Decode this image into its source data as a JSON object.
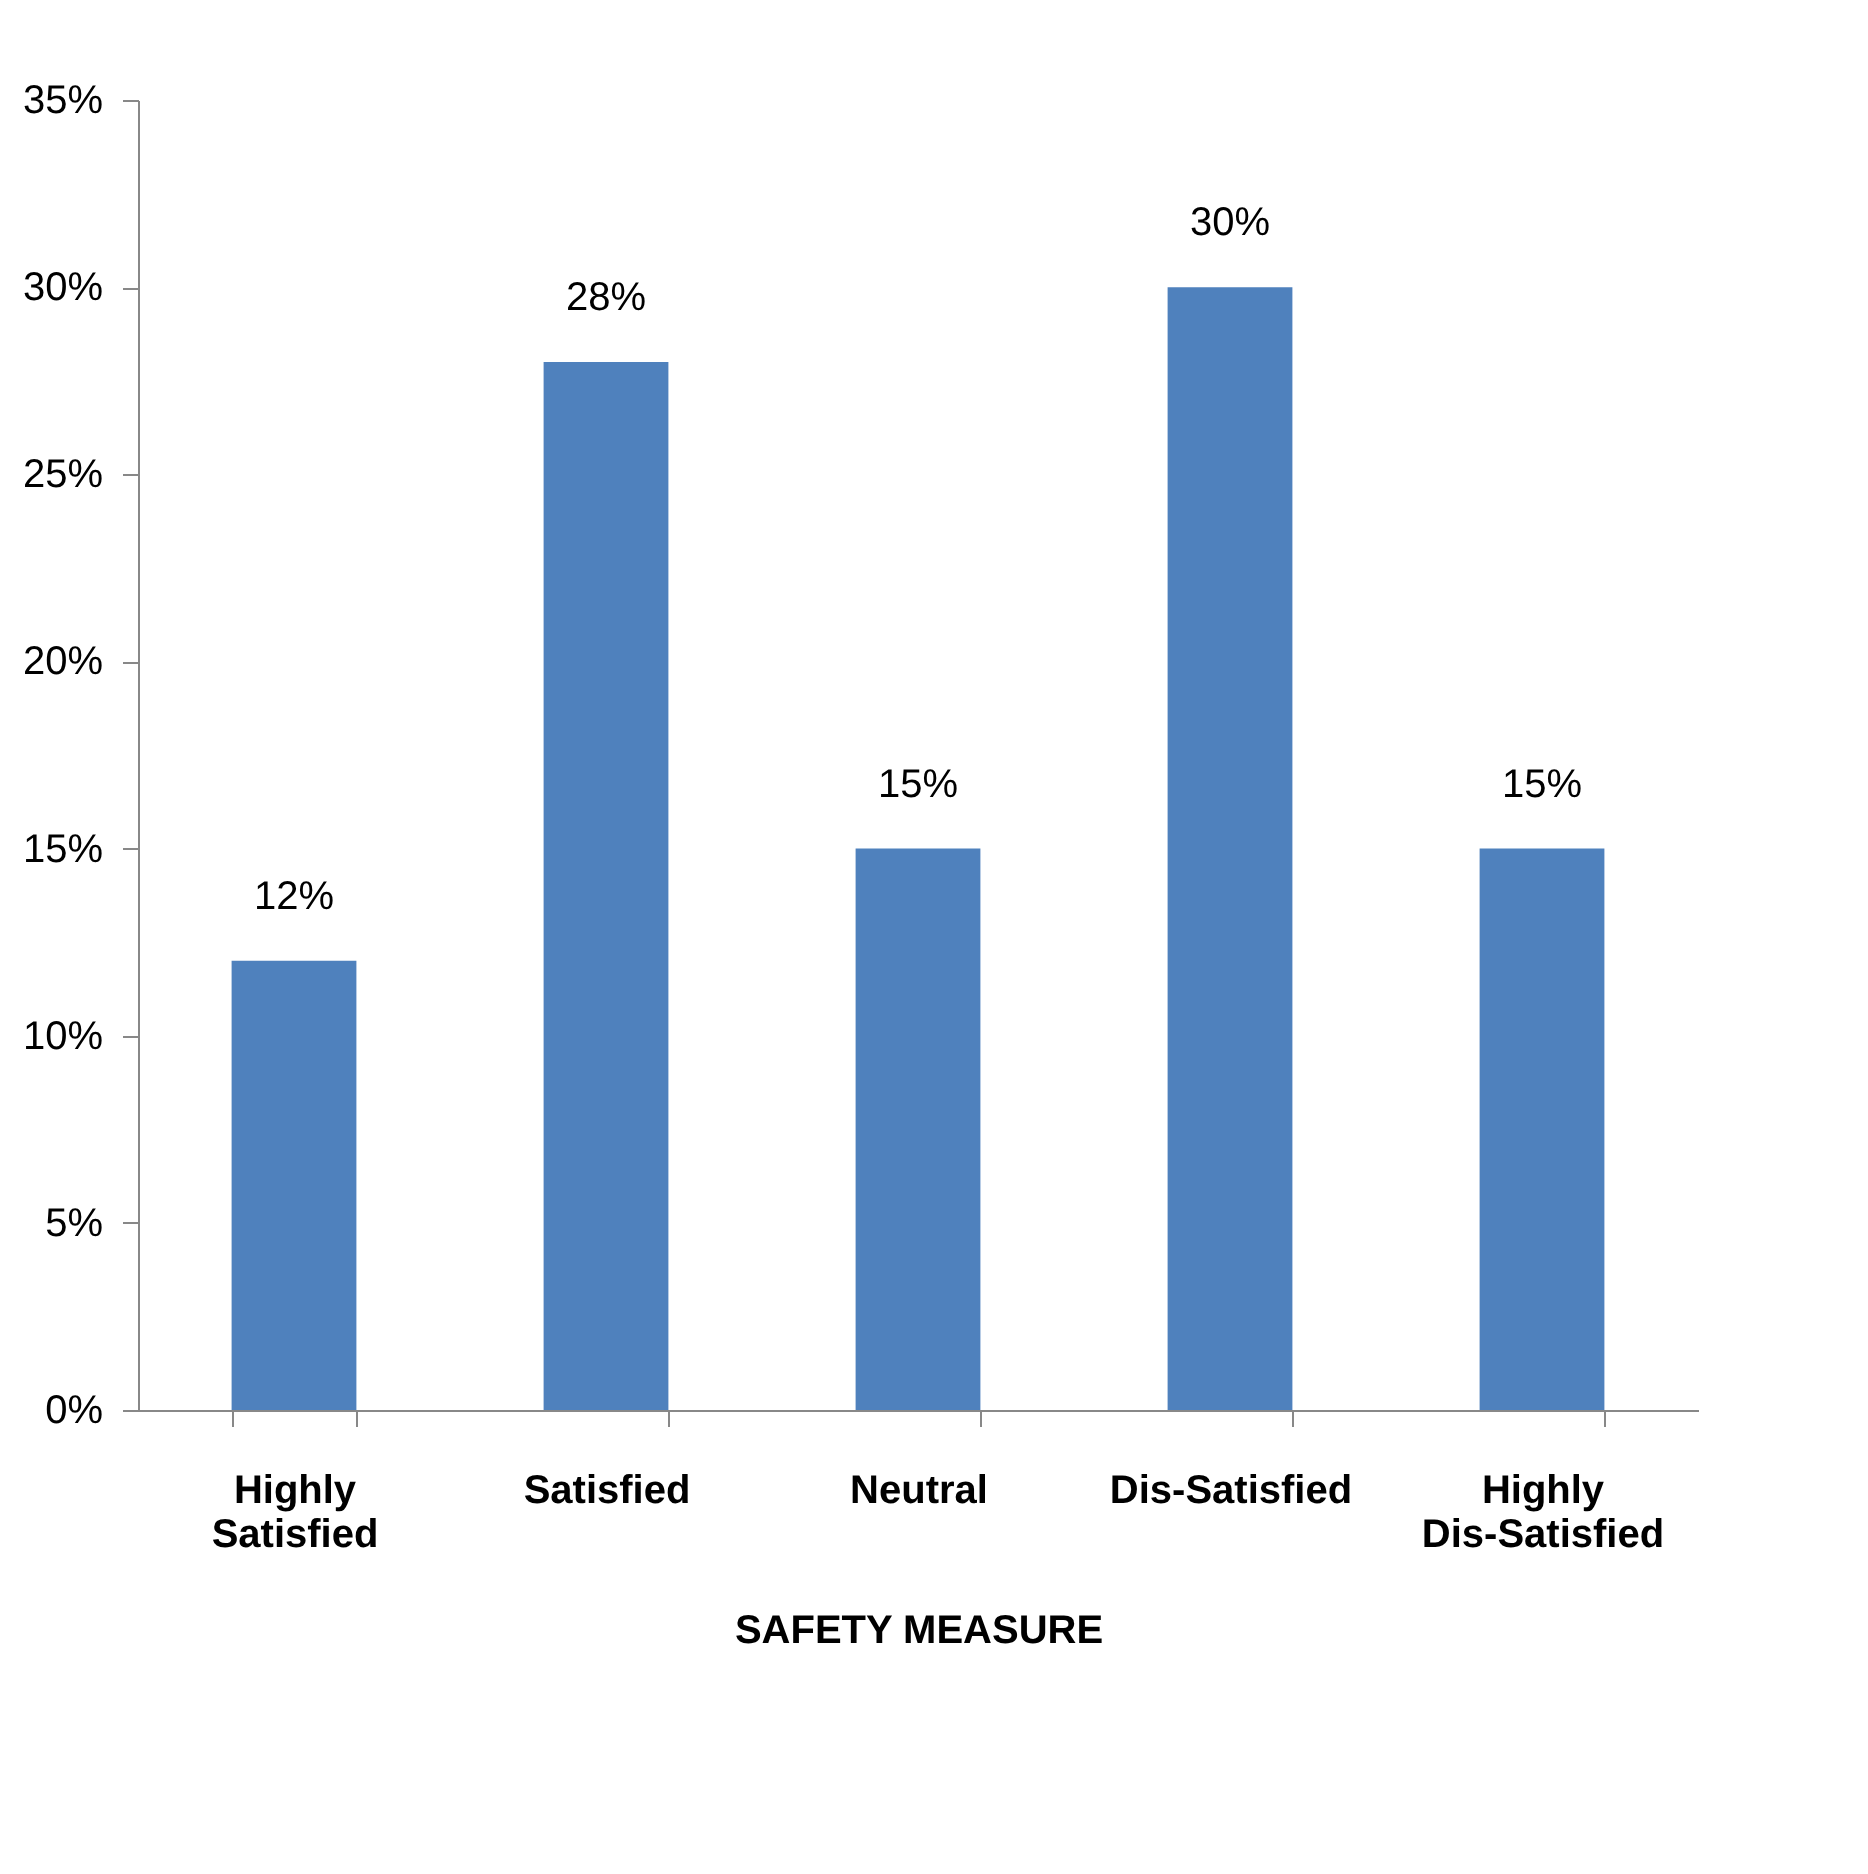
{
  "chart_data": {
    "type": "bar",
    "xlabel": "SAFETY MEASURE",
    "categories": [
      "Highly Satisfied",
      "Satisfied",
      "Neutral",
      "Dis-Satisfied",
      "Highly Dis-Satisfied"
    ],
    "values": [
      12,
      28,
      15,
      30,
      15
    ],
    "value_labels": [
      "12%",
      "28%",
      "15%",
      "30%",
      "15%"
    ],
    "color": "#4f81bd",
    "ylim": [
      0,
      35
    ],
    "yticks": [
      {
        "value": 0,
        "label": "0%"
      },
      {
        "value": 5,
        "label": "5%"
      },
      {
        "value": 10,
        "label": "10%"
      },
      {
        "value": 15,
        "label": "15%"
      },
      {
        "value": 20,
        "label": "20%"
      },
      {
        "value": 25,
        "label": "25%"
      },
      {
        "value": 30,
        "label": "30%"
      },
      {
        "value": 35,
        "label": "35%"
      }
    ],
    "grid": false
  }
}
